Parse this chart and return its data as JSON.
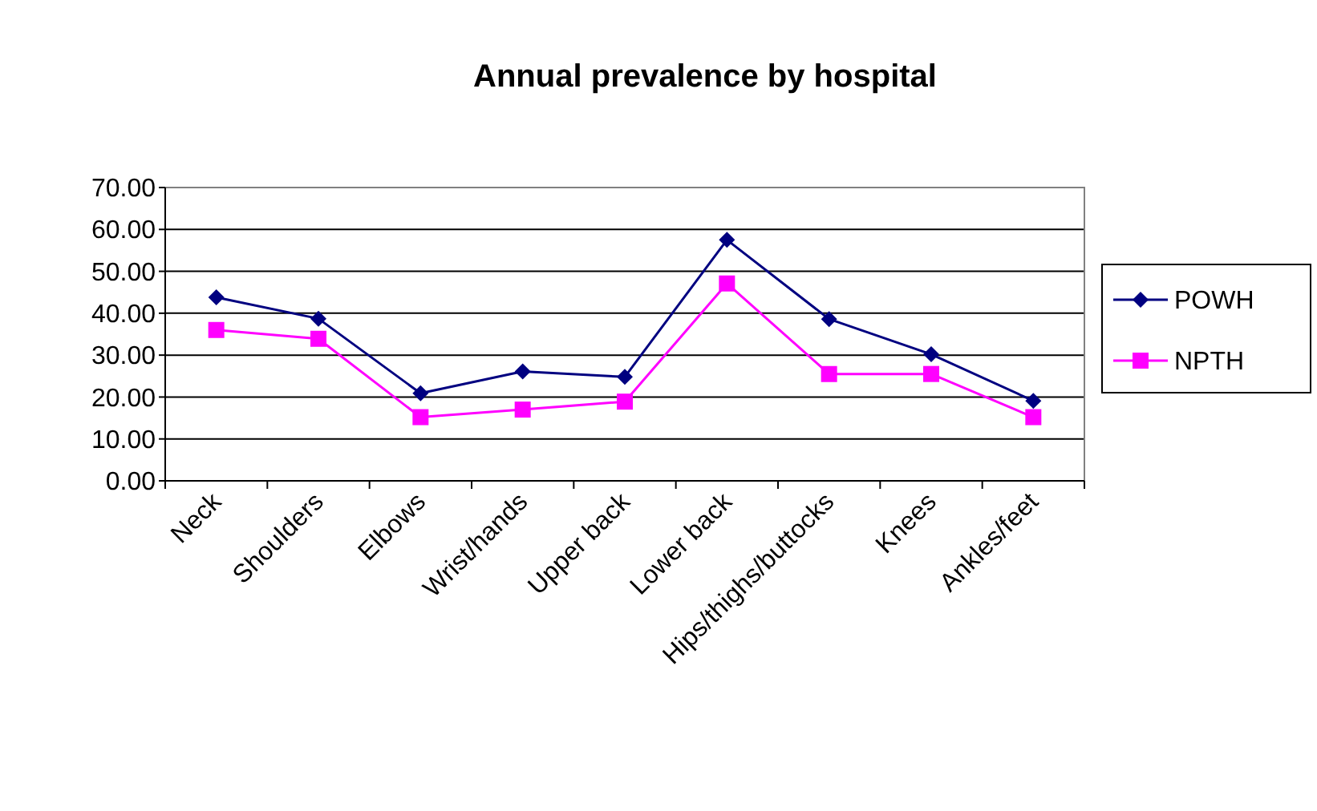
{
  "chart_data": {
    "type": "line",
    "title": "Annual prevalence by hospital",
    "categories": [
      "Neck",
      "Shoulders",
      "Elbows",
      "Wrist/hands",
      "Upper back",
      "Lower back",
      "Hips/thighs/buttocks",
      "Knees",
      "Ankles/feet"
    ],
    "series": [
      {
        "name": "POWH",
        "color": "#000080",
        "marker": "diamond",
        "values": [
          43.8,
          38.7,
          20.9,
          26.1,
          24.8,
          57.5,
          38.6,
          30.2,
          19.1
        ]
      },
      {
        "name": "NPTH",
        "color": "#ff00ff",
        "marker": "square",
        "values": [
          36.0,
          33.9,
          15.2,
          17.0,
          18.9,
          47.1,
          25.5,
          25.5,
          15.2
        ]
      }
    ],
    "ylim": [
      0,
      70
    ],
    "yticks": [
      {
        "value": 0,
        "label": "0.00"
      },
      {
        "value": 10,
        "label": "10.00"
      },
      {
        "value": 20,
        "label": "20.00"
      },
      {
        "value": 30,
        "label": "30.00"
      },
      {
        "value": 40,
        "label": "40.00"
      },
      {
        "value": 50,
        "label": "50.00"
      },
      {
        "value": 60,
        "label": "60.00"
      },
      {
        "value": 70,
        "label": "70.00"
      }
    ],
    "grid": "y",
    "legend": "right"
  }
}
